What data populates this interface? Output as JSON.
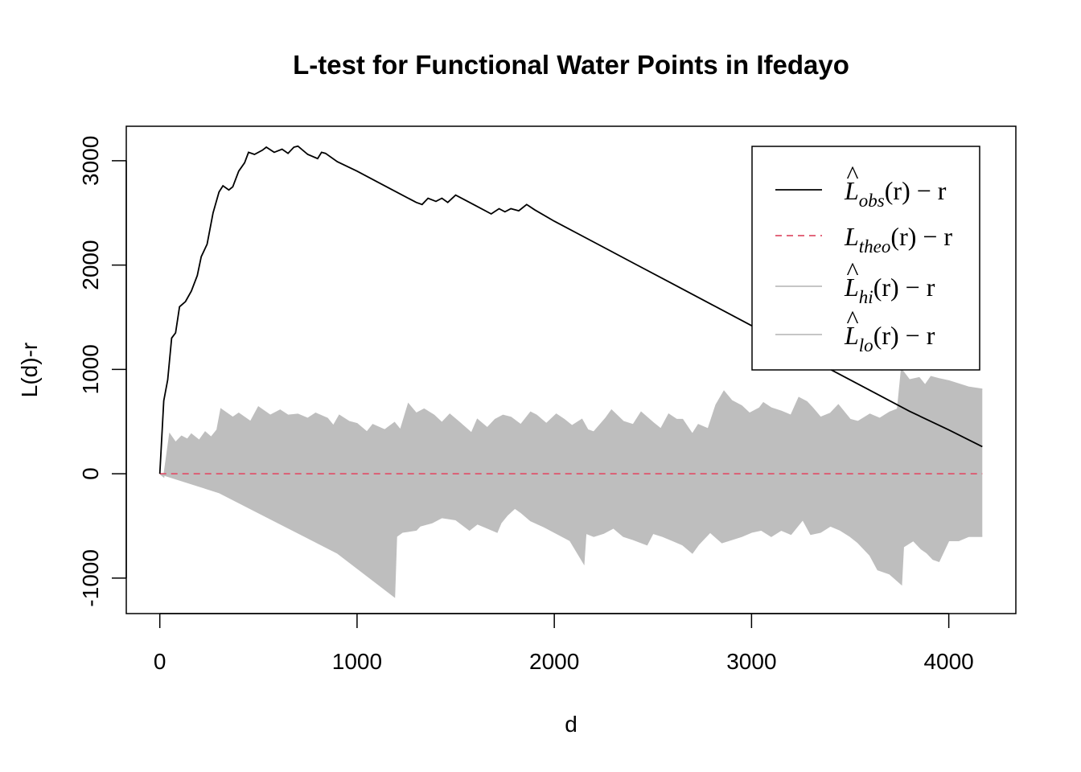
{
  "chart_data": {
    "type": "line",
    "title": "L-test for Functional Water Points in Ifedayo",
    "xlabel": "d",
    "ylabel": "L(d)-r",
    "xlim": [
      -170,
      4340
    ],
    "ylim": [
      -1340,
      3330
    ],
    "xticks": [
      0,
      1000,
      2000,
      3000,
      4000
    ],
    "yticks": [
      -1000,
      0,
      1000,
      2000,
      3000
    ],
    "xtick_labels": [
      "0",
      "1000",
      "2000",
      "3000",
      "4000"
    ],
    "ytick_labels": [
      "-1000",
      "0",
      "1000",
      "2000",
      "3000"
    ],
    "legend_position": "top-right",
    "legend": [
      {
        "base": "L",
        "hat": "^",
        "sub": "obs",
        "tail": "(r) − r",
        "color": "#000000",
        "dash": "solid"
      },
      {
        "base": "L",
        "hat": "",
        "sub": "theo",
        "tail": "(r) − r",
        "color": "#DF536B",
        "dash": "dashed"
      },
      {
        "base": "L",
        "hat": "^",
        "sub": "hi",
        "tail": "(r) − r",
        "color": "#BEBEBE",
        "dash": "solid"
      },
      {
        "base": "L",
        "hat": "^",
        "sub": "lo",
        "tail": "(r) − r",
        "color": "#BEBEBE",
        "dash": "solid"
      }
    ],
    "series": [
      {
        "key": "obs",
        "color": "#000000",
        "points": [
          [
            0,
            0
          ],
          [
            20,
            700
          ],
          [
            40,
            900
          ],
          [
            60,
            1300
          ],
          [
            80,
            1350
          ],
          [
            100,
            1600
          ],
          [
            130,
            1650
          ],
          [
            160,
            1750
          ],
          [
            190,
            1900
          ],
          [
            210,
            2080
          ],
          [
            240,
            2200
          ],
          [
            270,
            2500
          ],
          [
            300,
            2700
          ],
          [
            320,
            2760
          ],
          [
            350,
            2720
          ],
          [
            370,
            2750
          ],
          [
            400,
            2900
          ],
          [
            430,
            2980
          ],
          [
            450,
            3080
          ],
          [
            480,
            3060
          ],
          [
            520,
            3100
          ],
          [
            540,
            3130
          ],
          [
            580,
            3080
          ],
          [
            620,
            3110
          ],
          [
            650,
            3070
          ],
          [
            680,
            3130
          ],
          [
            700,
            3140
          ],
          [
            750,
            3060
          ],
          [
            800,
            3020
          ],
          [
            820,
            3080
          ],
          [
            840,
            3070
          ],
          [
            900,
            2990
          ],
          [
            1000,
            2900
          ],
          [
            1100,
            2800
          ],
          [
            1200,
            2700
          ],
          [
            1300,
            2600
          ],
          [
            1330,
            2580
          ],
          [
            1360,
            2640
          ],
          [
            1400,
            2610
          ],
          [
            1430,
            2640
          ],
          [
            1460,
            2600
          ],
          [
            1500,
            2670
          ],
          [
            1550,
            2620
          ],
          [
            1600,
            2570
          ],
          [
            1680,
            2490
          ],
          [
            1720,
            2540
          ],
          [
            1750,
            2510
          ],
          [
            1780,
            2540
          ],
          [
            1820,
            2520
          ],
          [
            1860,
            2580
          ],
          [
            1900,
            2530
          ],
          [
            2000,
            2420
          ],
          [
            2200,
            2220
          ],
          [
            2400,
            2020
          ],
          [
            2600,
            1820
          ],
          [
            2800,
            1620
          ],
          [
            3000,
            1420
          ],
          [
            3200,
            1200
          ],
          [
            3400,
            1000
          ],
          [
            3600,
            800
          ],
          [
            3800,
            600
          ],
          [
            4000,
            420
          ],
          [
            4170,
            260
          ]
        ]
      },
      {
        "key": "theo",
        "color": "#DF536B",
        "points": [
          [
            0,
            0
          ],
          [
            4170,
            0
          ]
        ]
      },
      {
        "key": "hi",
        "color": "#BEBEBE",
        "points": [
          [
            0,
            0
          ],
          [
            20,
            -30
          ],
          [
            50,
            380
          ],
          [
            80,
            300
          ],
          [
            110,
            360
          ],
          [
            140,
            330
          ],
          [
            160,
            380
          ],
          [
            200,
            320
          ],
          [
            230,
            400
          ],
          [
            260,
            350
          ],
          [
            290,
            420
          ],
          [
            310,
            620
          ],
          [
            370,
            540
          ],
          [
            400,
            580
          ],
          [
            460,
            500
          ],
          [
            500,
            640
          ],
          [
            560,
            560
          ],
          [
            610,
            610
          ],
          [
            650,
            560
          ],
          [
            700,
            570
          ],
          [
            750,
            530
          ],
          [
            790,
            580
          ],
          [
            850,
            530
          ],
          [
            880,
            460
          ],
          [
            910,
            560
          ],
          [
            960,
            500
          ],
          [
            1000,
            480
          ],
          [
            1050,
            400
          ],
          [
            1080,
            470
          ],
          [
            1140,
            420
          ],
          [
            1190,
            490
          ],
          [
            1220,
            420
          ],
          [
            1260,
            670
          ],
          [
            1300,
            580
          ],
          [
            1340,
            620
          ],
          [
            1390,
            560
          ],
          [
            1430,
            490
          ],
          [
            1470,
            570
          ],
          [
            1520,
            490
          ],
          [
            1580,
            390
          ],
          [
            1610,
            520
          ],
          [
            1660,
            440
          ],
          [
            1700,
            520
          ],
          [
            1740,
            560
          ],
          [
            1780,
            540
          ],
          [
            1830,
            470
          ],
          [
            1880,
            590
          ],
          [
            1910,
            560
          ],
          [
            1960,
            480
          ],
          [
            2010,
            570
          ],
          [
            2050,
            520
          ],
          [
            2090,
            460
          ],
          [
            2140,
            520
          ],
          [
            2170,
            420
          ],
          [
            2200,
            400
          ],
          [
            2260,
            530
          ],
          [
            2290,
            610
          ],
          [
            2350,
            500
          ],
          [
            2400,
            470
          ],
          [
            2440,
            590
          ],
          [
            2500,
            490
          ],
          [
            2540,
            430
          ],
          [
            2580,
            570
          ],
          [
            2620,
            520
          ],
          [
            2650,
            520
          ],
          [
            2700,
            380
          ],
          [
            2730,
            470
          ],
          [
            2780,
            430
          ],
          [
            2820,
            660
          ],
          [
            2860,
            790
          ],
          [
            2900,
            700
          ],
          [
            2950,
            650
          ],
          [
            2990,
            580
          ],
          [
            3040,
            630
          ],
          [
            3060,
            680
          ],
          [
            3100,
            630
          ],
          [
            3150,
            600
          ],
          [
            3200,
            560
          ],
          [
            3240,
            730
          ],
          [
            3280,
            690
          ],
          [
            3310,
            630
          ],
          [
            3350,
            540
          ],
          [
            3400,
            580
          ],
          [
            3440,
            660
          ],
          [
            3500,
            520
          ],
          [
            3540,
            500
          ],
          [
            3600,
            570
          ],
          [
            3650,
            530
          ],
          [
            3700,
            590
          ],
          [
            3740,
            620
          ],
          [
            3760,
            1000
          ],
          [
            3800,
            900
          ],
          [
            3850,
            920
          ],
          [
            3880,
            850
          ],
          [
            3910,
            930
          ],
          [
            3950,
            910
          ],
          [
            4000,
            890
          ],
          [
            4050,
            860
          ],
          [
            4100,
            830
          ],
          [
            4170,
            810
          ]
        ]
      },
      {
        "key": "lo",
        "color": "#BEBEBE",
        "points": [
          [
            0,
            0
          ],
          [
            300,
            -180
          ],
          [
            600,
            -470
          ],
          [
            900,
            -760
          ],
          [
            1190,
            -1180
          ],
          [
            1200,
            -600
          ],
          [
            1230,
            -560
          ],
          [
            1300,
            -540
          ],
          [
            1320,
            -500
          ],
          [
            1380,
            -470
          ],
          [
            1430,
            -420
          ],
          [
            1500,
            -440
          ],
          [
            1570,
            -540
          ],
          [
            1610,
            -480
          ],
          [
            1660,
            -520
          ],
          [
            1710,
            -560
          ],
          [
            1730,
            -470
          ],
          [
            1760,
            -400
          ],
          [
            1800,
            -330
          ],
          [
            1830,
            -370
          ],
          [
            1880,
            -450
          ],
          [
            1950,
            -510
          ],
          [
            2000,
            -560
          ],
          [
            2080,
            -640
          ],
          [
            2150,
            -860
          ],
          [
            2160,
            -570
          ],
          [
            2200,
            -600
          ],
          [
            2250,
            -570
          ],
          [
            2300,
            -520
          ],
          [
            2350,
            -600
          ],
          [
            2400,
            -630
          ],
          [
            2470,
            -680
          ],
          [
            2500,
            -570
          ],
          [
            2550,
            -600
          ],
          [
            2600,
            -640
          ],
          [
            2650,
            -680
          ],
          [
            2700,
            -760
          ],
          [
            2730,
            -680
          ],
          [
            2790,
            -560
          ],
          [
            2850,
            -660
          ],
          [
            2900,
            -630
          ],
          [
            2950,
            -600
          ],
          [
            3000,
            -560
          ],
          [
            3050,
            -540
          ],
          [
            3100,
            -600
          ],
          [
            3150,
            -540
          ],
          [
            3200,
            -580
          ],
          [
            3260,
            -440
          ],
          [
            3300,
            -580
          ],
          [
            3350,
            -560
          ],
          [
            3400,
            -500
          ],
          [
            3450,
            -540
          ],
          [
            3500,
            -600
          ],
          [
            3540,
            -660
          ],
          [
            3600,
            -780
          ],
          [
            3640,
            -920
          ],
          [
            3700,
            -960
          ],
          [
            3760,
            -1060
          ],
          [
            3770,
            -700
          ],
          [
            3820,
            -640
          ],
          [
            3860,
            -720
          ],
          [
            3890,
            -760
          ],
          [
            3920,
            -820
          ],
          [
            3950,
            -840
          ],
          [
            4000,
            -640
          ],
          [
            4050,
            -640
          ],
          [
            4100,
            -600
          ],
          [
            4170,
            -600
          ]
        ]
      }
    ]
  }
}
